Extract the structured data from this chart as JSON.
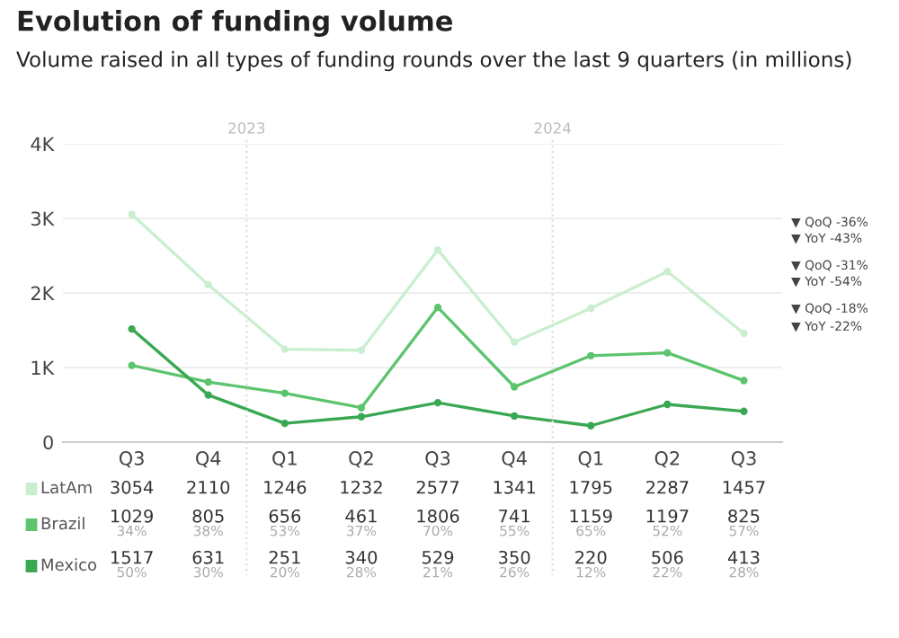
{
  "chart_data": {
    "type": "line",
    "title": "Evolution of funding volume",
    "subtitle": "Volume raised in all types of funding rounds over the last 9 quarters (in millions)",
    "categories": [
      "Q3",
      "Q4",
      "Q1",
      "Q2",
      "Q3",
      "Q4",
      "Q1",
      "Q2",
      "Q3"
    ],
    "series": [
      {
        "name": "LatAm",
        "color": "#c9efcf",
        "values": [
          3054,
          2110,
          1246,
          1232,
          2577,
          1341,
          1795,
          2287,
          1457
        ]
      },
      {
        "name": "Brazil",
        "color": "#5cc46e",
        "values": [
          1029,
          805,
          656,
          461,
          1806,
          741,
          1159,
          1197,
          825
        ]
      },
      {
        "name": "Mexico",
        "color": "#3aa853",
        "values": [
          1517,
          631,
          251,
          340,
          529,
          350,
          220,
          506,
          413
        ]
      }
    ],
    "ylim": [
      0,
      4000
    ],
    "yticks": [
      0,
      {
        "value": 1000,
        "label": "1K"
      },
      {
        "value": 2000,
        "label": "2K"
      },
      {
        "value": 3000,
        "label": "3K"
      },
      {
        "value": 4000,
        "label": "4K"
      }
    ],
    "grid": "y",
    "marker": "circle",
    "line_style": "solid",
    "legend": "bottom left",
    "data_labels": true,
    "annotations": [
      "▼ QoQ -36%",
      "▼ YoY -43%",
      "▼ QoQ -31%",
      "▼ YoY -54%",
      "▼ QoQ -18%",
      "▼ YoY -22%",
      "2023",
      "2024",
      "34%",
      "38%",
      "53%",
      "37%",
      "70%",
      "55%",
      "65%",
      "52%",
      "57%",
      "50%",
      "30%",
      "20%",
      "28%",
      "21%",
      "26%",
      "12%",
      "22%",
      "28%"
    ]
  }
}
